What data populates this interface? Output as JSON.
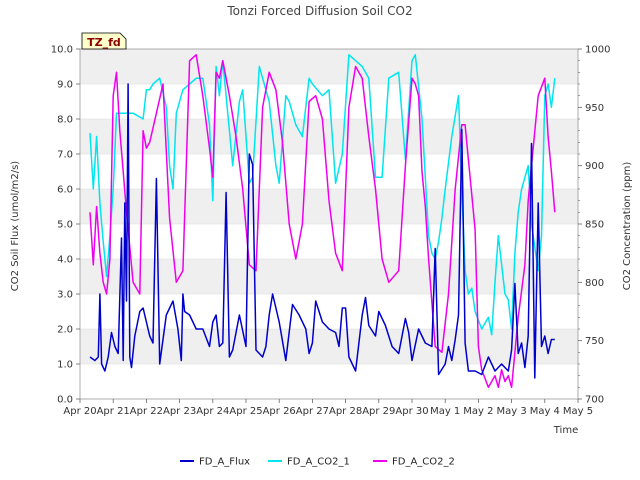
{
  "chart_data": {
    "type": "line",
    "title": "Tonzi Forced Diffusion Soil CO2",
    "xlabel": "Time",
    "ylabel_left": "CO2 Soil Flux (umol/m2/s)",
    "ylabel_right": "CO2 Concentration (ppm)",
    "site_tag": "TZ_fd",
    "x_ticks": [
      "Apr 20",
      "Apr 21",
      "Apr 22",
      "Apr 23",
      "Apr 24",
      "Apr 25",
      "Apr 26",
      "Apr 27",
      "Apr 28",
      "Apr 29",
      "Apr 30",
      "May 1",
      "May 2",
      "May 3",
      "May 4",
      "May 5"
    ],
    "xlim": [
      0,
      15
    ],
    "ylim_left": [
      0,
      10
    ],
    "ylim_right": [
      700,
      1000
    ],
    "left_ticks": [
      "0.0",
      "1.0",
      "2.0",
      "3.0",
      "4.0",
      "5.0",
      "6.0",
      "7.0",
      "8.0",
      "9.0",
      "10.0"
    ],
    "right_ticks": [
      "700",
      "750",
      "800",
      "850",
      "900",
      "950",
      "1000"
    ],
    "colors": {
      "FD_A_Flux": "#0000cc",
      "FD_A_CO2_1": "#00e5ee",
      "FD_A_CO2_2": "#ee00ee"
    },
    "series": [
      {
        "name": "FD_A_Flux",
        "axis": "left",
        "x": [
          0.3,
          0.45,
          0.55,
          0.6,
          0.65,
          0.75,
          0.85,
          0.95,
          1.05,
          1.15,
          1.25,
          1.3,
          1.35,
          1.4,
          1.45,
          1.5,
          1.55,
          1.65,
          1.8,
          1.9,
          2.0,
          2.1,
          2.2,
          2.3,
          2.4,
          2.6,
          2.8,
          2.95,
          3.05,
          3.1,
          3.15,
          3.3,
          3.5,
          3.7,
          3.9,
          4.0,
          4.1,
          4.2,
          4.3,
          4.4,
          4.5,
          4.6,
          4.8,
          5.0,
          5.1,
          5.2,
          5.3,
          5.5,
          5.6,
          5.7,
          5.8,
          6.0,
          6.2,
          6.4,
          6.6,
          6.8,
          6.9,
          7.0,
          7.1,
          7.3,
          7.5,
          7.7,
          7.8,
          7.9,
          8.0,
          8.1,
          8.3,
          8.5,
          8.6,
          8.7,
          8.9,
          9.0,
          9.2,
          9.4,
          9.6,
          9.8,
          9.9,
          10.0,
          10.2,
          10.4,
          10.6,
          10.7,
          10.8,
          11.0,
          11.1,
          11.2,
          11.3,
          11.4,
          11.5,
          11.6,
          11.7,
          11.9,
          12.1,
          12.3,
          12.5,
          12.6,
          12.7,
          12.9,
          13.0,
          13.1,
          13.2,
          13.3,
          13.4,
          13.5,
          13.6,
          13.7,
          13.8,
          13.9,
          14.0,
          14.1,
          14.2,
          14.3
        ],
        "values": [
          1.2,
          1.1,
          1.2,
          3.0,
          1.0,
          0.8,
          1.2,
          1.9,
          1.5,
          1.3,
          4.6,
          1.1,
          5.6,
          2.8,
          9.0,
          1.2,
          0.9,
          1.8,
          2.5,
          2.6,
          2.2,
          1.8,
          1.6,
          6.3,
          1.0,
          2.4,
          2.8,
          2.0,
          1.1,
          3.0,
          2.5,
          2.4,
          2.0,
          2.0,
          1.5,
          2.2,
          2.4,
          1.5,
          1.6,
          5.9,
          1.2,
          1.4,
          2.4,
          1.5,
          7.0,
          6.7,
          1.4,
          1.2,
          1.5,
          2.4,
          3.0,
          2.2,
          1.1,
          2.7,
          2.4,
          2.0,
          1.3,
          1.6,
          2.8,
          2.2,
          2.0,
          1.9,
          1.5,
          2.6,
          2.6,
          1.2,
          0.8,
          2.4,
          2.9,
          2.1,
          1.8,
          2.5,
          2.1,
          1.5,
          1.3,
          2.3,
          1.9,
          1.1,
          2.0,
          1.6,
          1.5,
          4.3,
          0.7,
          1.0,
          1.5,
          1.1,
          1.7,
          2.4,
          7.7,
          1.6,
          0.8,
          0.8,
          0.7,
          1.2,
          0.8,
          0.9,
          1.0,
          0.8,
          1.4,
          3.3,
          1.3,
          1.6,
          0.9,
          1.8,
          7.3,
          0.6,
          5.6,
          1.5,
          1.8,
          1.3,
          1.7,
          1.7
        ]
      },
      {
        "name": "FD_A_CO2_1",
        "axis": "right",
        "x": [
          0.3,
          0.4,
          0.5,
          0.6,
          0.7,
          0.8,
          0.9,
          1.0,
          1.1,
          1.2,
          1.3,
          1.4,
          1.6,
          1.9,
          2.0,
          2.1,
          2.2,
          2.4,
          2.6,
          2.7,
          2.8,
          2.9,
          3.1,
          3.3,
          3.5,
          3.7,
          3.9,
          4.0,
          4.1,
          4.2,
          4.3,
          4.5,
          4.6,
          4.8,
          4.9,
          5.1,
          5.2,
          5.4,
          5.5,
          5.7,
          5.9,
          6.0,
          6.2,
          6.3,
          6.5,
          6.7,
          6.9,
          7.0,
          7.3,
          7.5,
          7.7,
          7.9,
          8.1,
          8.3,
          8.5,
          8.7,
          8.9,
          9.1,
          9.3,
          9.6,
          9.8,
          10.0,
          10.1,
          10.3,
          10.5,
          10.6,
          10.7,
          10.8,
          10.9,
          11.0,
          11.2,
          11.4,
          11.5,
          11.6,
          11.7,
          11.8,
          11.9,
          12.1,
          12.3,
          12.4,
          12.5,
          12.6,
          12.8,
          12.9,
          13.0,
          13.1,
          13.2,
          13.3,
          13.4,
          13.5,
          13.6,
          13.7,
          13.8,
          13.9,
          14.0,
          14.1,
          14.2,
          14.3
        ],
        "values": [
          928,
          880,
          925,
          868,
          835,
          805,
          840,
          880,
          945,
          945,
          945,
          945,
          945,
          940,
          965,
          965,
          970,
          975,
          950,
          900,
          880,
          945,
          965,
          970,
          975,
          975,
          935,
          870,
          985,
          960,
          990,
          930,
          900,
          955,
          965,
          885,
          890,
          985,
          975,
          955,
          900,
          885,
          960,
          955,
          935,
          925,
          975,
          970,
          960,
          965,
          885,
          910,
          995,
          990,
          985,
          975,
          890,
          890,
          975,
          980,
          905,
          990,
          995,
          940,
          840,
          825,
          820,
          835,
          855,
          880,
          925,
          960,
          880,
          810,
          790,
          795,
          775,
          760,
          770,
          755,
          800,
          840,
          790,
          785,
          760,
          825,
          860,
          880,
          890,
          900,
          850,
          830,
          810,
          840,
          960,
          970,
          950,
          975
        ]
      },
      {
        "name": "FD_A_CO2_2",
        "axis": "right",
        "x": [
          0.3,
          0.4,
          0.5,
          0.6,
          0.7,
          0.8,
          0.9,
          1.0,
          1.1,
          1.2,
          1.3,
          1.4,
          1.6,
          1.8,
          1.9,
          2.0,
          2.1,
          2.3,
          2.5,
          2.7,
          2.9,
          3.1,
          3.3,
          3.5,
          3.7,
          3.9,
          4.0,
          4.1,
          4.2,
          4.3,
          4.5,
          4.7,
          4.9,
          5.1,
          5.3,
          5.5,
          5.7,
          5.9,
          6.1,
          6.3,
          6.5,
          6.7,
          6.9,
          7.1,
          7.3,
          7.5,
          7.7,
          7.9,
          8.1,
          8.3,
          8.5,
          8.7,
          8.9,
          9.1,
          9.3,
          9.6,
          9.8,
          10.0,
          10.1,
          10.2,
          10.3,
          10.4,
          10.5,
          10.7,
          10.9,
          11.1,
          11.3,
          11.5,
          11.6,
          11.7,
          11.8,
          11.9,
          12.0,
          12.1,
          12.3,
          12.4,
          12.5,
          12.6,
          12.7,
          12.8,
          12.9,
          13.0,
          13.2,
          13.4,
          13.5,
          13.6,
          13.8,
          14.0,
          14.1,
          14.2,
          14.3
        ],
        "values": [
          860,
          815,
          865,
          825,
          800,
          790,
          820,
          960,
          980,
          930,
          895,
          860,
          800,
          790,
          930,
          915,
          920,
          945,
          970,
          855,
          800,
          810,
          990,
          995,
          960,
          915,
          890,
          980,
          975,
          990,
          960,
          925,
          880,
          815,
          810,
          950,
          980,
          965,
          920,
          850,
          820,
          850,
          955,
          960,
          940,
          870,
          825,
          810,
          950,
          985,
          975,
          925,
          880,
          820,
          800,
          810,
          900,
          975,
          970,
          960,
          895,
          865,
          820,
          745,
          740,
          790,
          880,
          935,
          935,
          905,
          875,
          845,
          745,
          725,
          710,
          715,
          720,
          710,
          725,
          715,
          720,
          710,
          770,
          815,
          870,
          900,
          960,
          975,
          925,
          895,
          860
        ]
      }
    ],
    "legend": [
      "FD_A_Flux",
      "FD_A_CO2_1",
      "FD_A_CO2_2"
    ],
    "legend_position": "bottom-center",
    "grid": true
  }
}
